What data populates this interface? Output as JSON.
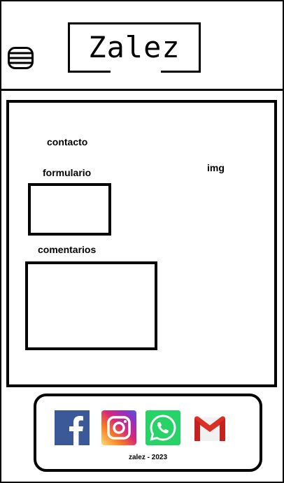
{
  "header": {
    "brand": "Zalez",
    "menu_icon": "hamburger-menu-icon"
  },
  "main": {
    "contacto_label": "contacto",
    "formulario_label": "formulario",
    "img_label": "img",
    "comentarios_label": "comentarios"
  },
  "footer": {
    "social_icons": [
      "facebook-icon",
      "instagram-icon",
      "whatsapp-icon",
      "gmail-icon"
    ],
    "copyright": "zalez - 2023"
  },
  "colors": {
    "facebook": "#3b5998",
    "whatsapp": "#25d366",
    "gmail_red": "#d93025",
    "instagram": [
      "#feda75",
      "#fa7e1e",
      "#d62976",
      "#962fbf",
      "#4f5bd5"
    ]
  }
}
